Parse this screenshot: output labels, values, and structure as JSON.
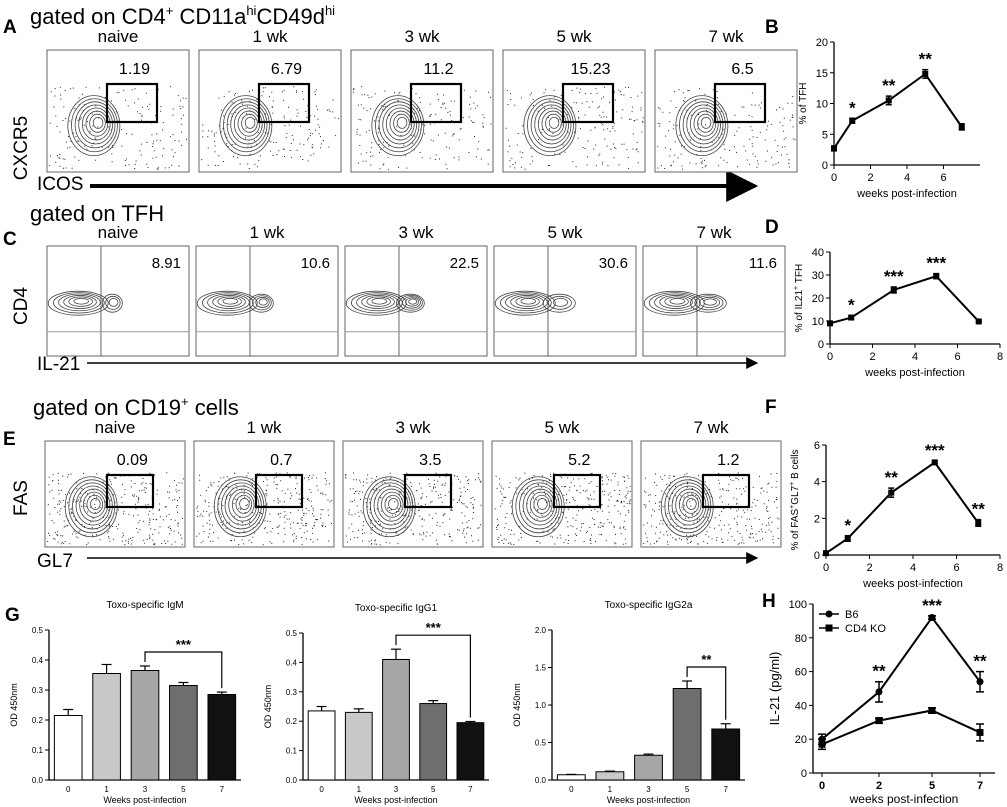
{
  "figure": {
    "panelA": {
      "letter": "A",
      "gate_pre": "gated on CD4",
      "gate_sup1": "+",
      "gate_mid": " CD11a",
      "gate_sup2": "hi",
      "gate_mid2": "CD49d",
      "gate_sup3": "hi",
      "yaxis": "CXCR5",
      "xaxis": "ICOS",
      "plots": [
        {
          "time": "naive",
          "value": "1.19"
        },
        {
          "time": "1 wk",
          "value": "6.79"
        },
        {
          "time": "3 wk",
          "value": "11.2"
        },
        {
          "time": "5 wk",
          "value": "15.23"
        },
        {
          "time": "7 wk",
          "value": "6.5"
        }
      ]
    },
    "panelC": {
      "letter": "C",
      "gate": "gated on TFH",
      "yaxis": "CD4",
      "xaxis": "IL-21",
      "plots": [
        {
          "time": "naive",
          "value": "8.91"
        },
        {
          "time": "1 wk",
          "value": "10.6"
        },
        {
          "time": "3 wk",
          "value": "22.5"
        },
        {
          "time": "5 wk",
          "value": "30.6"
        },
        {
          "time": "7 wk",
          "value": "11.6"
        }
      ]
    },
    "panelE": {
      "letter": "E",
      "gate_pre": "gated on CD19",
      "gate_sup": "+",
      "gate_post": " cells",
      "yaxis": "FAS",
      "xaxis": "GL7",
      "plots": [
        {
          "time": "naive",
          "value": "0.09"
        },
        {
          "time": "1 wk",
          "value": "0.7"
        },
        {
          "time": "3 wk",
          "value": "3.5"
        },
        {
          "time": "5 wk",
          "value": "5.2"
        },
        {
          "time": "7 wk",
          "value": "1.2"
        }
      ]
    }
  },
  "chart_data": [
    {
      "id": "B",
      "type": "line",
      "ylabel": "% of TFH",
      "xlabel": "weeks post-infection",
      "xlim": [
        0,
        8
      ],
      "ylim": [
        0,
        20
      ],
      "xticks": [
        "0",
        "2",
        "4",
        "6"
      ],
      "yticks": [
        "0",
        "5",
        "10",
        "15",
        "20"
      ],
      "x": [
        0,
        1,
        3,
        5,
        7
      ],
      "y": [
        2.7,
        7.2,
        10.5,
        14.8,
        6.2
      ],
      "err": [
        0.4,
        0.4,
        0.7,
        0.7,
        0.5
      ],
      "sig": [
        "",
        "*",
        "**",
        "**",
        ""
      ]
    },
    {
      "id": "D",
      "type": "line",
      "ylabel_pre": "% of IL21",
      "ylabel_sup": "+",
      "ylabel_post": " TFH",
      "xlabel": "weeks post-infection",
      "xlim": [
        0,
        8
      ],
      "ylim": [
        0,
        40
      ],
      "xticks": [
        "0",
        "2",
        "4",
        "6",
        "8"
      ],
      "yticks": [
        "0",
        "10",
        "20",
        "30",
        "40"
      ],
      "x": [
        0,
        1,
        3,
        5,
        7
      ],
      "y": [
        9,
        11.5,
        23.5,
        29.5,
        9.8
      ],
      "err": [
        0.5,
        0.8,
        1.3,
        1.1,
        0.5
      ],
      "sig": [
        "",
        "*",
        "***",
        "***",
        ""
      ]
    },
    {
      "id": "F",
      "type": "line",
      "ylabel_pre": "% of FAS",
      "ylabel_sup1": "+",
      "ylabel_mid": "GL7",
      "ylabel_sup2": "+",
      "ylabel_post": " B cells",
      "xlabel": "weeks post-infection",
      "xlim": [
        0,
        8
      ],
      "ylim": [
        0,
        6
      ],
      "xticks": [
        "0",
        "2",
        "4",
        "6",
        "8"
      ],
      "yticks": [
        "0",
        "2",
        "4",
        "6"
      ],
      "x": [
        0,
        1,
        3,
        5,
        7
      ],
      "y": [
        0.1,
        0.9,
        3.4,
        5.05,
        1.75
      ],
      "err": [
        0.05,
        0.15,
        0.25,
        0.08,
        0.18
      ],
      "sig": [
        "",
        "*",
        "**",
        "***",
        "**"
      ]
    },
    {
      "id": "G1",
      "type": "bar",
      "title": "Toxo-specific IgM",
      "ylabel": "OD 450nm",
      "xlabel": "Weeks post-infection",
      "categories": [
        "0",
        "1",
        "3",
        "5",
        "7"
      ],
      "values": [
        0.215,
        0.355,
        0.365,
        0.315,
        0.285
      ],
      "err": [
        0.02,
        0.03,
        0.015,
        0.01,
        0.008
      ],
      "fills": [
        "#ffffff",
        "#c8c8c8",
        "#a6a6a6",
        "#6e6e6e",
        "#111111"
      ],
      "ylim": [
        0,
        0.5
      ],
      "yticks": [
        "0.0",
        "0.1",
        "0.2",
        "0.3",
        "0.4",
        "0.5"
      ],
      "sig": {
        "from": 2,
        "to": 4,
        "label": "***"
      }
    },
    {
      "id": "G2",
      "type": "bar",
      "title": "Toxo-specific IgG1",
      "ylabel": "OD 450nm",
      "xlabel": "Weeks post-infection",
      "categories": [
        "0",
        "1",
        "3",
        "5",
        "7"
      ],
      "values": [
        0.235,
        0.23,
        0.41,
        0.26,
        0.195
      ],
      "err": [
        0.015,
        0.012,
        0.035,
        0.01,
        0.004
      ],
      "fills": [
        "#ffffff",
        "#c8c8c8",
        "#a6a6a6",
        "#6e6e6e",
        "#111111"
      ],
      "ylim": [
        0,
        0.5
      ],
      "yticks": [
        "0.0",
        "0.1",
        "0.2",
        "0.3",
        "0.4",
        "0.5"
      ],
      "sig": {
        "from": 2,
        "to": 4,
        "label": "***"
      }
    },
    {
      "id": "G3",
      "type": "bar",
      "title": "Toxo-specific IgG2a",
      "ylabel": "OD 450nm",
      "xlabel": "Weeks post-infection",
      "categories": [
        "0",
        "1",
        "3",
        "5",
        "7"
      ],
      "values": [
        0.07,
        0.11,
        0.33,
        1.22,
        0.68
      ],
      "err": [
        0.005,
        0.008,
        0.015,
        0.1,
        0.07
      ],
      "fills": [
        "#ffffff",
        "#c8c8c8",
        "#a6a6a6",
        "#6e6e6e",
        "#111111"
      ],
      "ylim": [
        0,
        2.0
      ],
      "yticks": [
        "0.0",
        "0.5",
        "1.0",
        "1.5",
        "2.0"
      ],
      "sig": {
        "from": 3,
        "to": 4,
        "label": "**"
      }
    },
    {
      "id": "H",
      "type": "line",
      "ylabel": "IL-21 (pg/ml)",
      "xlabel": "weeks post-infection",
      "categories": [
        "0",
        "2",
        "5",
        "7"
      ],
      "ylim": [
        0,
        100
      ],
      "yticks": [
        "0",
        "20",
        "40",
        "60",
        "80",
        "100"
      ],
      "series": [
        {
          "name": "B6",
          "values": [
            20,
            48,
            92,
            54
          ],
          "err": [
            3,
            6,
            1,
            6
          ],
          "marker": "circle"
        },
        {
          "name": "CD4 KO",
          "values": [
            17,
            31,
            37,
            24
          ],
          "err": [
            3,
            1.5,
            1.5,
            5
          ],
          "marker": "square"
        }
      ],
      "sig": [
        "",
        "**",
        "***",
        "**"
      ]
    }
  ],
  "panel_letters": {
    "B": "B",
    "D": "D",
    "F": "F",
    "G": "G",
    "H": "H"
  }
}
